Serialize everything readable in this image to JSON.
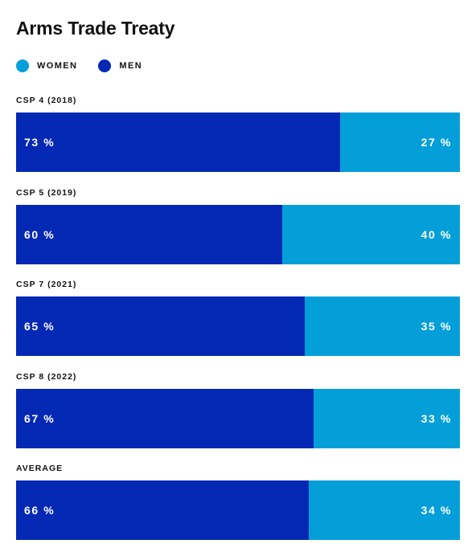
{
  "colors": {
    "women": "#049fd9",
    "men": "#0328b4"
  },
  "legend": {
    "women_label": "WOMEN",
    "men_label": "MEN"
  },
  "chart_data": {
    "type": "bar",
    "orientation": "horizontal-stacked-100",
    "title": "Arms Trade Treaty",
    "categories": [
      "CSP 4 (2018)",
      "CSP 5 (2019)",
      "CSP 7 (2021)",
      "CSP 8 (2022)",
      "AVERAGE"
    ],
    "series": [
      {
        "name": "MEN",
        "values": [
          73,
          60,
          65,
          67,
          66
        ],
        "labels": [
          "73 %",
          "60 %",
          "65 %",
          "67 %",
          "66 %"
        ]
      },
      {
        "name": "WOMEN",
        "values": [
          27,
          40,
          35,
          33,
          34
        ],
        "labels": [
          "27 %",
          "40 %",
          "35 %",
          "33 %",
          "34 %"
        ]
      }
    ],
    "unit": "%",
    "xlim": [
      0,
      100
    ],
    "legend_position": "top-left"
  }
}
